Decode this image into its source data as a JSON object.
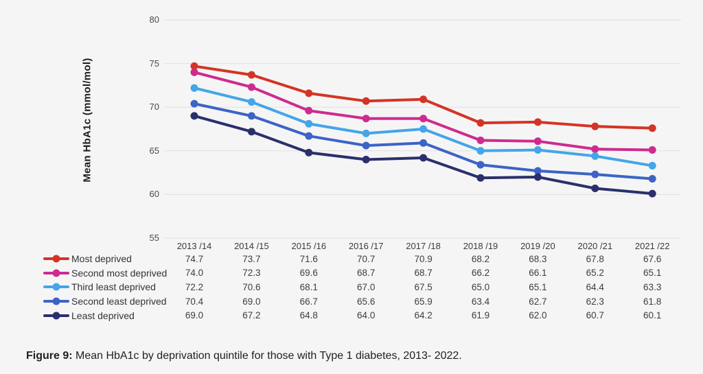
{
  "page": {
    "background": "#f5f5f6",
    "gridline_color": "#e0e0e1"
  },
  "chart_data": {
    "type": "line",
    "title": "",
    "xlabel": "",
    "ylabel": "Mean HbA1c (mmol/mol)",
    "ylim": [
      55,
      80
    ],
    "yticks": [
      55,
      60,
      65,
      70,
      75,
      80
    ],
    "grid": true,
    "legend_position": "bottom-left as table row labels",
    "categories": [
      "2013 /14",
      "2014 /15",
      "2015 /16",
      "2016 /17",
      "2017 /18",
      "2018 /19",
      "2019 /20",
      "2020 /21",
      "2021 /22"
    ],
    "series": [
      {
        "name": "Most deprived",
        "color": "#d43425",
        "values": [
          74.7,
          73.7,
          71.6,
          70.7,
          70.9,
          68.2,
          68.3,
          67.8,
          67.6
        ]
      },
      {
        "name": "Second most deprived",
        "color": "#ce2b8e",
        "values": [
          74.0,
          72.3,
          69.6,
          68.7,
          68.7,
          66.2,
          66.1,
          65.2,
          65.1
        ]
      },
      {
        "name": "Third least deprived",
        "color": "#44a5e8",
        "values": [
          72.2,
          70.6,
          68.1,
          67.0,
          67.5,
          65.0,
          65.1,
          64.4,
          63.3
        ]
      },
      {
        "name": "Second least deprived",
        "color": "#3c64c4",
        "values": [
          70.4,
          69.0,
          66.7,
          65.6,
          65.9,
          63.4,
          62.7,
          62.3,
          61.8
        ]
      },
      {
        "name": "Least deprived",
        "color": "#2b2f6b",
        "values": [
          69.0,
          67.2,
          64.8,
          64.0,
          64.2,
          61.9,
          62.0,
          60.7,
          60.1
        ]
      }
    ]
  },
  "caption": {
    "label": "Figure 9:",
    "text": " Mean HbA1c by deprivation quintile for those with Type 1 diabetes, 2013- 2022."
  }
}
